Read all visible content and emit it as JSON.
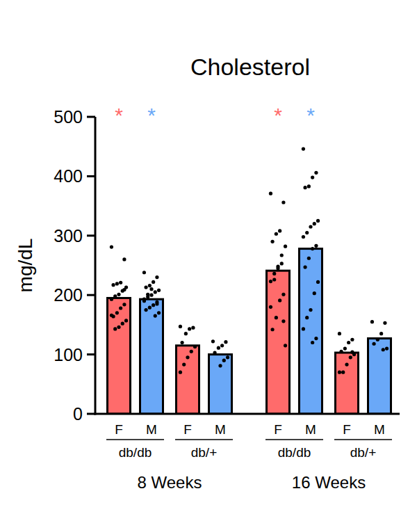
{
  "chart_data": {
    "type": "bar",
    "title": "Cholesterol",
    "ylabel": "mg/dL",
    "categories": [
      "F",
      "M",
      "F",
      "M",
      "F",
      "M",
      "F",
      "M"
    ],
    "genotypes": [
      "db/db",
      "db/+",
      "db/db",
      "db/+"
    ],
    "timepoints": [
      "8 Weeks",
      "16 Weeks"
    ],
    "values": [
      195,
      193,
      115,
      100,
      241,
      278,
      103,
      127
    ],
    "colors": [
      "#ff6b6b",
      "#6aa8f7",
      "#ff6b6b",
      "#6aa8f7",
      "#ff6b6b",
      "#6aa8f7",
      "#ff6b6b",
      "#6aa8f7"
    ],
    "points": [
      [
        281,
        260,
        221,
        219,
        217,
        213,
        207,
        201,
        198,
        193,
        184,
        178,
        170,
        164,
        157,
        152,
        146,
        143,
        166,
        209
      ],
      [
        238,
        230,
        222,
        216,
        213,
        208,
        205,
        200,
        197,
        193,
        188,
        183,
        179,
        175,
        170,
        165,
        210,
        201,
        190,
        185
      ],
      [
        147,
        145,
        143,
        135,
        120,
        113,
        105,
        95,
        83,
        70
      ],
      [
        122,
        121,
        115,
        111,
        103,
        95,
        90,
        81
      ],
      [
        371,
        356,
        308,
        303,
        290,
        282,
        253,
        248,
        236,
        223,
        201,
        191,
        162,
        142,
        115,
        267,
        245,
        226,
        180,
        156
      ],
      [
        446,
        406,
        398,
        383,
        381,
        325,
        320,
        315,
        305,
        298,
        283,
        278,
        262,
        247,
        222,
        203,
        175,
        162,
        143,
        127,
        120
      ],
      [
        135,
        125,
        120,
        110,
        105,
        100,
        95,
        83,
        70,
        70,
        104
      ],
      [
        155,
        153,
        135,
        125,
        118,
        110,
        108
      ]
    ],
    "significance": [
      "*",
      "*",
      null,
      null,
      "*",
      "*",
      null,
      null
    ],
    "ylim": [
      0,
      500
    ],
    "yticks": [
      0,
      100,
      200,
      300,
      400,
      500
    ],
    "grid": false
  }
}
